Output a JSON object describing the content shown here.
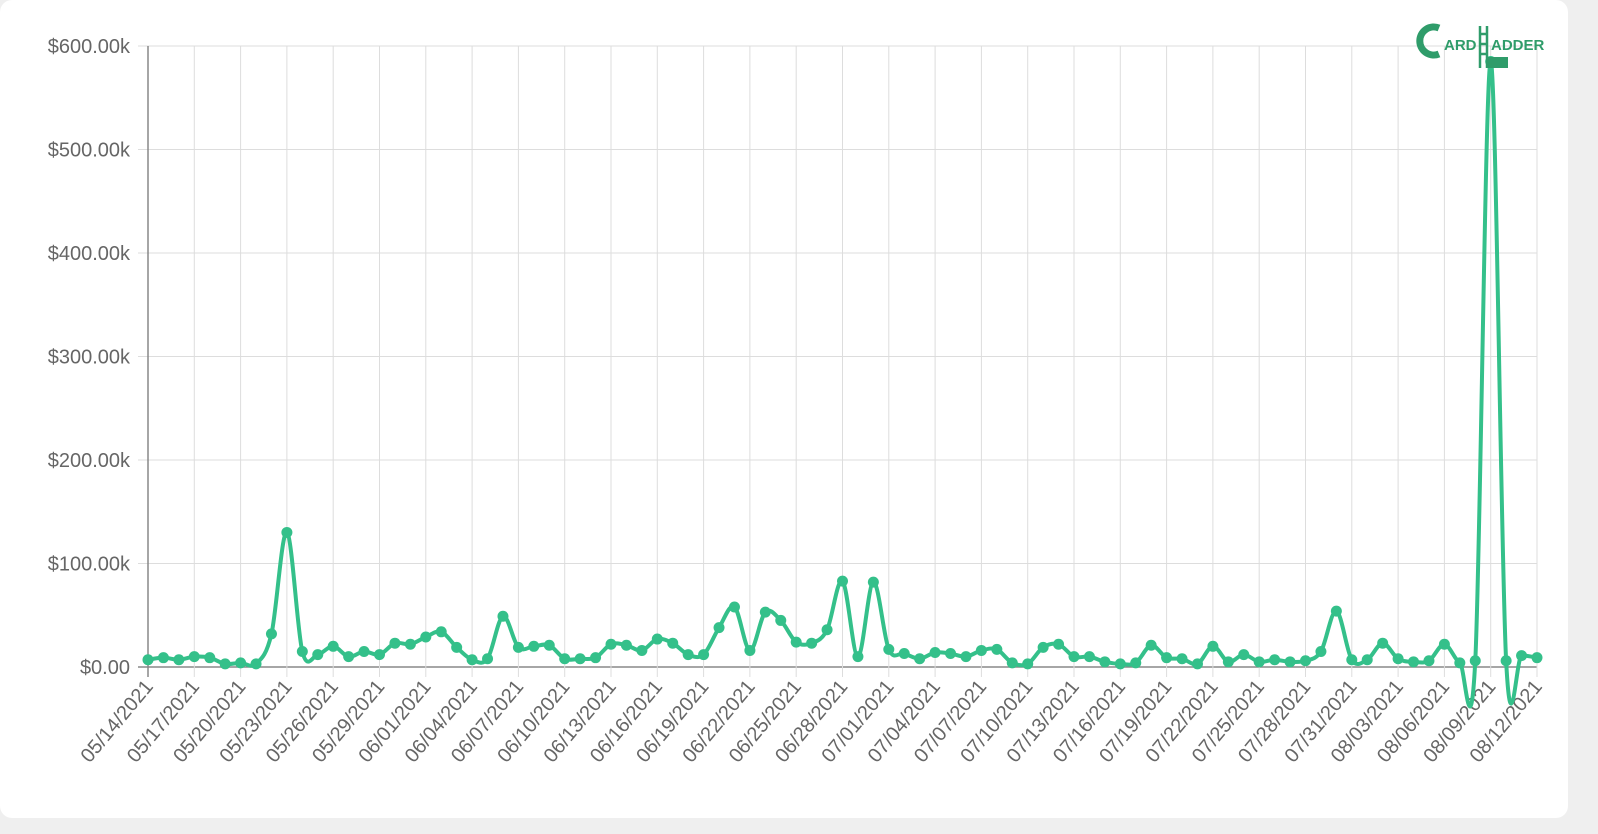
{
  "logo": {
    "part1": "ARD",
    "part2": "ADDER",
    "color": "#2f9c6a"
  },
  "chart_data": {
    "type": "line",
    "title": "",
    "xlabel": "",
    "ylabel": "",
    "line_color": "#34c08a",
    "grid": true,
    "ylim": [
      0,
      600000
    ],
    "y_ticks": [
      "$0.00",
      "$100.00k",
      "$200.00k",
      "$300.00k",
      "$400.00k",
      "$500.00k",
      "$600.00k"
    ],
    "x_tick_labels": [
      "05/14/2021",
      "05/17/2021",
      "05/20/2021",
      "05/23/2021",
      "05/26/2021",
      "05/29/2021",
      "06/01/2021",
      "06/04/2021",
      "06/07/2021",
      "06/10/2021",
      "06/13/2021",
      "06/16/2021",
      "06/19/2021",
      "06/22/2021",
      "06/25/2021",
      "06/28/2021",
      "07/01/2021",
      "07/04/2021",
      "07/07/2021",
      "07/10/2021",
      "07/13/2021",
      "07/16/2021",
      "07/19/2021",
      "07/22/2021",
      "07/25/2021",
      "07/28/2021",
      "07/31/2021",
      "08/03/2021",
      "08/06/2021",
      "08/09/2021",
      "08/12/2021"
    ],
    "x_start": "05/14/2021",
    "x_end": "08/13/2021",
    "values": [
      7000,
      9000,
      7000,
      10000,
      9000,
      3000,
      4000,
      3000,
      32000,
      130000,
      15000,
      12000,
      20000,
      10000,
      15000,
      12000,
      23000,
      22000,
      29000,
      34000,
      19000,
      7000,
      8000,
      49000,
      19000,
      20000,
      21000,
      8000,
      8000,
      9000,
      22000,
      21000,
      16000,
      27000,
      23000,
      12000,
      12000,
      38000,
      58000,
      16000,
      53000,
      45000,
      24000,
      23000,
      36000,
      83000,
      10000,
      82000,
      17000,
      13000,
      8000,
      14000,
      13000,
      10000,
      16000,
      17000,
      4000,
      3000,
      19000,
      22000,
      10000,
      10000,
      5000,
      3000,
      4000,
      21000,
      9000,
      8000,
      3000,
      20000,
      5000,
      12000,
      5000,
      7000,
      5000,
      6000,
      15000,
      54000,
      7000,
      7000,
      23000,
      8000,
      5000,
      6000,
      22000,
      4000,
      6000,
      585000,
      6000,
      11000,
      9000
    ]
  }
}
